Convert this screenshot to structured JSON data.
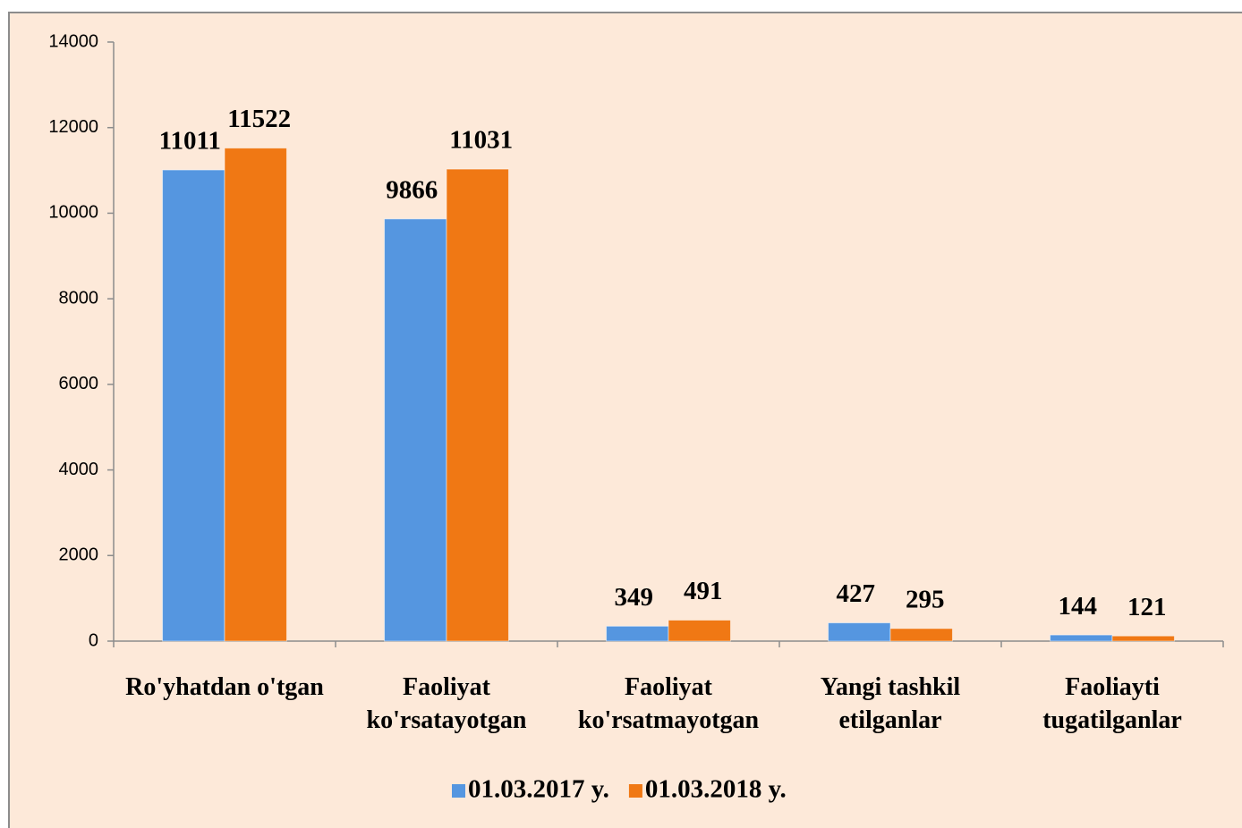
{
  "chart_data": {
    "type": "bar",
    "categories": [
      "Ro'yhatdan o'tgan",
      "Faoliyat\nko'rsatayotgan",
      "Faoliyat\nko'rsatmayotgan",
      "Yangi tashkil\netilganlar",
      "Faoliayti\ntugatilganlar"
    ],
    "series": [
      {
        "name": "01.03.2017 y.",
        "color": "#5596e0",
        "values": [
          11011,
          9866,
          349,
          427,
          144
        ]
      },
      {
        "name": "01.03.2018 y.",
        "color": "#f07814",
        "values": [
          11522,
          11031,
          491,
          295,
          121
        ]
      }
    ],
    "ylim": [
      0,
      14000
    ],
    "yticks": [
      0,
      2000,
      4000,
      6000,
      8000,
      10000,
      12000,
      14000
    ],
    "legend": "bottom"
  }
}
